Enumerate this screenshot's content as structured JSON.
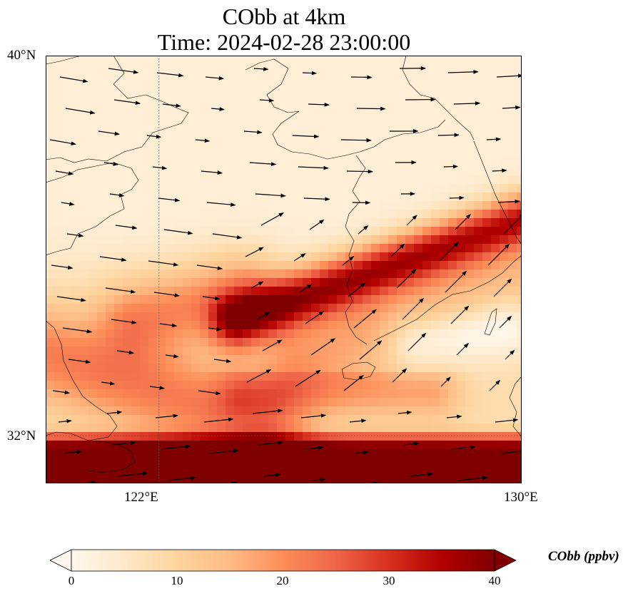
{
  "title": {
    "line1": "CObb at 4km",
    "line2": "Time: 2024-02-28 23:00:00"
  },
  "map": {
    "extent": {
      "lon_min": 119.5,
      "lon_max": 130,
      "lat_min": 31,
      "lat_max": 40
    },
    "lat_ticks": [
      {
        "value": 40,
        "label": "40°N"
      },
      {
        "value": 32,
        "label": "32°N"
      }
    ],
    "lon_ticks": [
      {
        "value": 122,
        "label": "122°E"
      },
      {
        "value": 130,
        "label": "130°E"
      }
    ],
    "gridlines": "dotted",
    "overlay": "wind vectors",
    "field_colormap": "OrRd"
  },
  "colorbar": {
    "label": "CObb (ppbv)",
    "min": 0,
    "max": 40,
    "ticks": [
      "0",
      "10",
      "20",
      "30",
      "40"
    ],
    "extend": "both",
    "colors": [
      "#fff7ec",
      "#fee8c8",
      "#fdd49e",
      "#fdbb84",
      "#fc8d59",
      "#ef6548",
      "#d7301f",
      "#b30000",
      "#7f0000"
    ]
  }
}
